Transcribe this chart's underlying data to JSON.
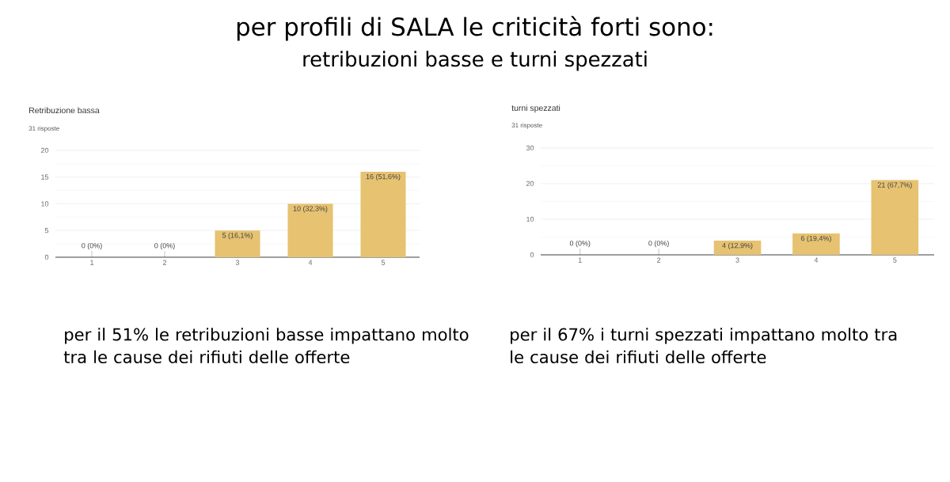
{
  "chart_data": [
    {
      "type": "other",
      "title": "per profili di SALA le criticità forti sono:",
      "subtitle": "retribuzioni basse e turni spezzati"
    },
    {
      "type": "bar",
      "title": "Retribuzione bassa",
      "subtitle": "31 risposte",
      "categories": [
        "1",
        "2",
        "3",
        "4",
        "5"
      ],
      "values": [
        0,
        0,
        5,
        10,
        16
      ],
      "value_labels": [
        "0 (0%)",
        "0 (0%)",
        "5 (16,1%)",
        "10 (32,3%)",
        "16 (51,6%)"
      ],
      "color": "#e6c271",
      "ylim": [
        0,
        20
      ],
      "yticks": [
        0,
        {
          "value": 2.5,
          "label": null
        },
        5,
        {
          "value": 7.5,
          "label": null
        },
        10,
        {
          "value": 12.5,
          "label": null
        },
        15,
        {
          "value": 17.5,
          "label": null
        },
        20
      ],
      "grid": "y",
      "annotations": [
        "per il 51% le retribuzioni basse impattano molto tra le cause dei rifiuti delle offerte"
      ]
    },
    {
      "type": "bar",
      "title": "turni spezzati",
      "subtitle": "31 risposte",
      "categories": [
        "1",
        "2",
        "3",
        "4",
        "5"
      ],
      "values": [
        0,
        0,
        4,
        6,
        21
      ],
      "value_labels": [
        "0 (0%)",
        "0 (0%)",
        "4 (12,9%)",
        "6 (19,4%)",
        "21 (67,7%)"
      ],
      "color": "#e6c271",
      "ylim": [
        0,
        30
      ],
      "yticks": [
        0,
        {
          "value": 5,
          "label": null
        },
        10,
        {
          "value": 15,
          "label": null
        },
        20,
        {
          "value": 25,
          "label": null
        },
        30
      ],
      "grid": "y",
      "annotations": [
        "per il 67% i turni spezzati impattano molto tra le cause dei rifiuti delle offerte"
      ]
    }
  ]
}
